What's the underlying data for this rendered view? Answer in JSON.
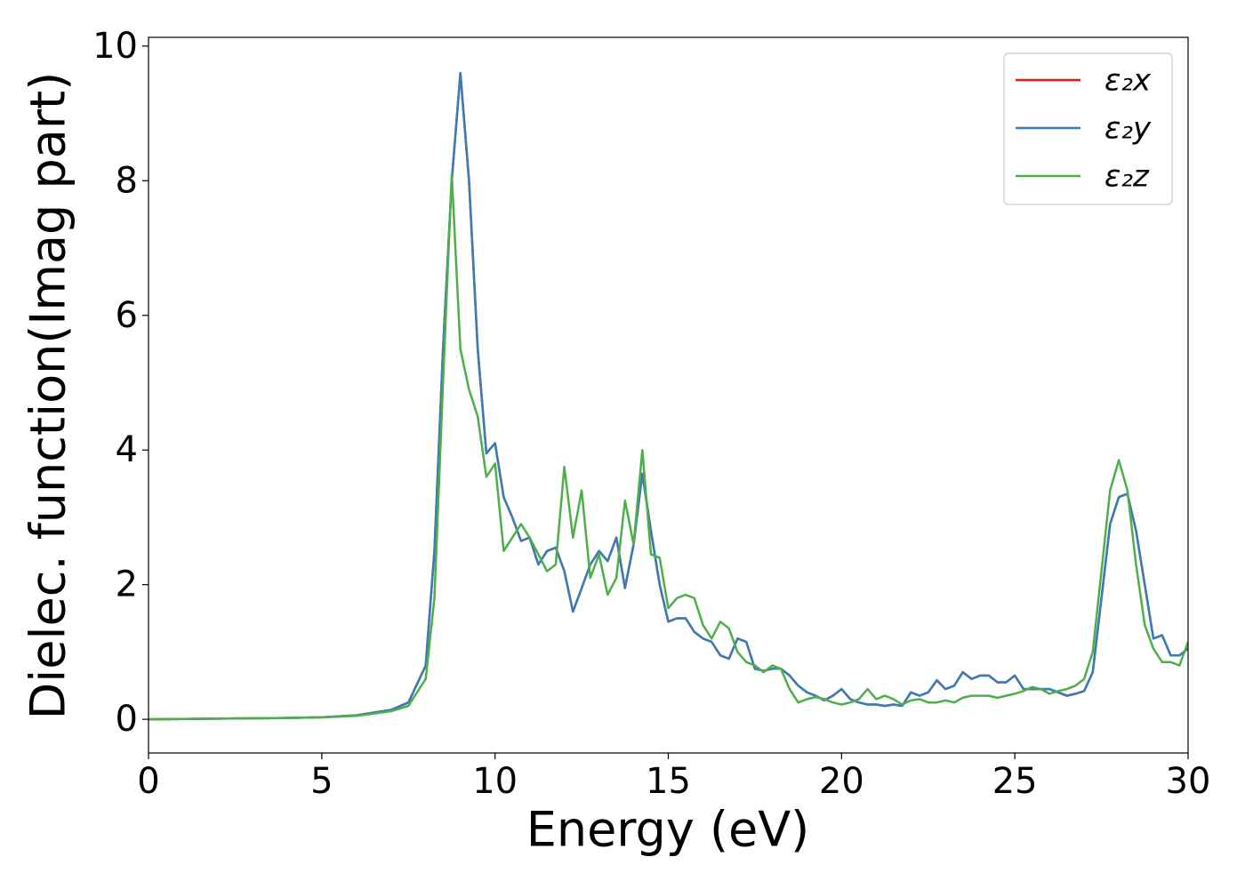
{
  "chart_data": {
    "type": "line",
    "xlabel": "Energy (eV)",
    "ylabel": "Dielec. function(Imag part)",
    "x": [
      0,
      2,
      4,
      5,
      6,
      7,
      7.5,
      8,
      8.25,
      8.5,
      8.75,
      9,
      9.25,
      9.5,
      9.75,
      10,
      10.25,
      10.5,
      10.75,
      11,
      11.25,
      11.5,
      11.75,
      12,
      12.25,
      12.5,
      12.75,
      13,
      13.25,
      13.5,
      13.75,
      14,
      14.25,
      14.5,
      14.75,
      15,
      15.25,
      15.5,
      15.75,
      16,
      16.25,
      16.5,
      16.75,
      17,
      17.25,
      17.5,
      17.75,
      18,
      18.25,
      18.5,
      18.75,
      19,
      19.25,
      19.5,
      19.75,
      20,
      20.25,
      20.5,
      20.75,
      21,
      21.25,
      21.5,
      21.75,
      22,
      22.25,
      22.5,
      22.75,
      23,
      23.25,
      23.5,
      23.75,
      24,
      24.25,
      24.5,
      24.75,
      25,
      25.25,
      25.5,
      25.75,
      26,
      26.25,
      26.5,
      26.75,
      27,
      27.25,
      27.5,
      27.75,
      28,
      28.25,
      28.5,
      28.75,
      29,
      29.25,
      29.5,
      29.75,
      30
    ],
    "series": [
      {
        "name": "ε₂x",
        "color": "#e41a1c",
        "values": [
          0,
          0.01,
          0.02,
          0.03,
          0.06,
          0.14,
          0.25,
          0.8,
          2.5,
          5.5,
          8.0,
          9.6,
          8.0,
          5.5,
          3.95,
          4.1,
          3.3,
          3.0,
          2.65,
          2.7,
          2.3,
          2.5,
          2.55,
          2.2,
          1.6,
          1.95,
          2.3,
          2.5,
          2.35,
          2.7,
          1.95,
          2.6,
          3.65,
          2.8,
          2.0,
          1.45,
          1.5,
          1.5,
          1.3,
          1.2,
          1.15,
          0.95,
          0.9,
          1.2,
          1.15,
          0.75,
          0.72,
          0.75,
          0.75,
          0.65,
          0.5,
          0.4,
          0.35,
          0.28,
          0.35,
          0.45,
          0.3,
          0.25,
          0.22,
          0.22,
          0.2,
          0.22,
          0.2,
          0.4,
          0.35,
          0.4,
          0.58,
          0.45,
          0.5,
          0.7,
          0.6,
          0.65,
          0.65,
          0.55,
          0.55,
          0.65,
          0.45,
          0.45,
          0.45,
          0.45,
          0.4,
          0.35,
          0.38,
          0.42,
          0.7,
          1.8,
          2.9,
          3.3,
          3.35,
          2.8,
          2.0,
          1.2,
          1.25,
          0.95,
          0.95,
          1.05
        ]
      },
      {
        "name": "ε₂y",
        "color": "#377eb8",
        "values": [
          0,
          0.01,
          0.02,
          0.03,
          0.06,
          0.14,
          0.25,
          0.8,
          2.5,
          5.5,
          8.0,
          9.6,
          8.0,
          5.5,
          3.95,
          4.1,
          3.3,
          3.0,
          2.65,
          2.7,
          2.3,
          2.5,
          2.55,
          2.2,
          1.6,
          1.95,
          2.3,
          2.5,
          2.35,
          2.7,
          1.95,
          2.6,
          3.65,
          2.8,
          2.0,
          1.45,
          1.5,
          1.5,
          1.3,
          1.2,
          1.15,
          0.95,
          0.9,
          1.2,
          1.15,
          0.75,
          0.72,
          0.75,
          0.75,
          0.65,
          0.5,
          0.4,
          0.35,
          0.28,
          0.35,
          0.45,
          0.3,
          0.25,
          0.22,
          0.22,
          0.2,
          0.22,
          0.2,
          0.4,
          0.35,
          0.4,
          0.58,
          0.45,
          0.5,
          0.7,
          0.6,
          0.65,
          0.65,
          0.55,
          0.55,
          0.65,
          0.45,
          0.45,
          0.45,
          0.45,
          0.4,
          0.35,
          0.38,
          0.42,
          0.7,
          1.8,
          2.9,
          3.3,
          3.35,
          2.8,
          2.0,
          1.2,
          1.25,
          0.95,
          0.95,
          1.05
        ]
      },
      {
        "name": "ε₂z",
        "color": "#4daf4a",
        "values": [
          0,
          0.01,
          0.02,
          0.03,
          0.05,
          0.12,
          0.2,
          0.6,
          1.8,
          5.0,
          8.1,
          5.5,
          4.9,
          4.5,
          3.6,
          3.8,
          2.5,
          2.7,
          2.9,
          2.7,
          2.45,
          2.2,
          2.3,
          3.75,
          2.7,
          3.4,
          2.1,
          2.45,
          1.85,
          2.1,
          3.25,
          2.6,
          4.0,
          2.45,
          2.4,
          1.65,
          1.8,
          1.85,
          1.8,
          1.4,
          1.2,
          1.45,
          1.35,
          1.0,
          0.85,
          0.8,
          0.7,
          0.8,
          0.75,
          0.45,
          0.25,
          0.3,
          0.33,
          0.3,
          0.25,
          0.22,
          0.25,
          0.3,
          0.45,
          0.3,
          0.35,
          0.3,
          0.22,
          0.28,
          0.3,
          0.25,
          0.25,
          0.28,
          0.25,
          0.32,
          0.35,
          0.35,
          0.35,
          0.32,
          0.35,
          0.38,
          0.42,
          0.48,
          0.45,
          0.38,
          0.42,
          0.45,
          0.5,
          0.6,
          1.0,
          2.2,
          3.4,
          3.85,
          3.4,
          2.3,
          1.4,
          1.05,
          0.85,
          0.85,
          0.8,
          1.15
        ]
      }
    ],
    "xlim": [
      0,
      30
    ],
    "xticks": [
      0,
      5,
      10,
      15,
      20,
      25,
      30
    ],
    "ylim": [
      -0.5,
      10.13
    ],
    "yticks": [
      0,
      2,
      4,
      6,
      8,
      10
    ],
    "legend": "upper right",
    "grid": false
  }
}
